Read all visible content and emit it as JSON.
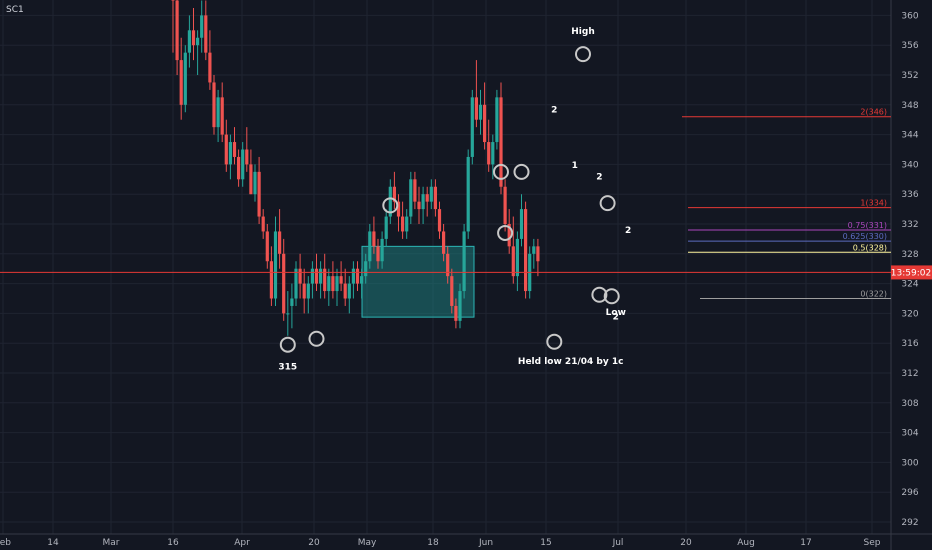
{
  "symbol": "SC1",
  "current_price_label": "13:59:02",
  "colors": {
    "background": "#131722",
    "grid": "#1f2431",
    "axis_text": "#b2b5be",
    "up_candle": "#26a69a",
    "down_candle": "#ef5350",
    "price_line": "#e53935",
    "box_fill": "#1e7a7a",
    "circle": "#c8c8c8",
    "text": "#ffffff"
  },
  "chart_data": {
    "type": "candlestick",
    "y_ticks": [
      "292",
      "296",
      "300",
      "304",
      "308",
      "312",
      "316",
      "320",
      "324",
      "328",
      "332",
      "336",
      "340",
      "344",
      "348",
      "352",
      "356",
      "360"
    ],
    "x_ticks": [
      "Feb",
      "14",
      "Mar",
      "16",
      "Apr",
      "20",
      "May",
      "18",
      "Jun",
      "15",
      "Jul",
      "20",
      "Aug",
      "17",
      "Sep"
    ],
    "ylim": [
      290,
      363
    ],
    "current_price": 325.5,
    "range_box": {
      "top": 329,
      "bottom": 319.5,
      "from": "Apr 27",
      "to": "May 29"
    },
    "fib_levels": [
      {
        "label": "2(346)",
        "value": 346.4,
        "color": "#e53935"
      },
      {
        "label": "1(334)",
        "value": 334.2,
        "color": "#e53935"
      },
      {
        "label": "0.75(331)",
        "value": 331.2,
        "color": "#ab47bc"
      },
      {
        "label": "0.625(330)",
        "value": 329.7,
        "color": "#5c6bc0"
      },
      {
        "label": "0.5(328)",
        "value": 328.2,
        "color": "#fff59d"
      },
      {
        "label": "0(322)",
        "value": 322.0,
        "color": "#9e9e9e"
      }
    ],
    "annotations": [
      {
        "text": "High",
        "date_index": 100,
        "price": 357.5
      },
      {
        "text": "315",
        "date_index": 28,
        "price": 312.5
      },
      {
        "text": "Held low 21/04 by 1c",
        "date_index": 97,
        "price": 313.2
      },
      {
        "text": "Low",
        "date_index": 108,
        "price": 319.8
      },
      {
        "text": "2",
        "date_index": 93,
        "price": 347.0
      },
      {
        "text": "1",
        "date_index": 98,
        "price": 339.5
      },
      {
        "text": "2",
        "date_index": 104,
        "price": 338.0
      },
      {
        "text": "2",
        "date_index": 111,
        "price": 330.8
      },
      {
        "text": "2",
        "date_index": 108,
        "price": 319.2
      }
    ],
    "circles": [
      {
        "date_index": 100,
        "price": 354.8
      },
      {
        "date_index": 80,
        "price": 339.0
      },
      {
        "date_index": 85,
        "price": 339.0
      },
      {
        "date_index": 53,
        "price": 334.5
      },
      {
        "date_index": 81,
        "price": 330.8
      },
      {
        "date_index": 28,
        "price": 315.8
      },
      {
        "date_index": 35,
        "price": 316.6
      },
      {
        "date_index": 93,
        "price": 316.2
      },
      {
        "date_index": 106,
        "price": 334.8
      },
      {
        "date_index": 104,
        "price": 322.5
      },
      {
        "date_index": 107,
        "price": 322.3
      }
    ],
    "candles": [
      [
        365,
        366,
        355,
        362
      ],
      [
        362,
        364,
        352,
        354
      ],
      [
        354,
        357,
        346,
        348
      ],
      [
        348,
        356,
        347,
        355
      ],
      [
        355,
        360,
        353,
        358
      ],
      [
        358,
        361,
        354,
        356
      ],
      [
        356,
        358,
        352,
        357
      ],
      [
        357,
        362,
        355,
        360
      ],
      [
        360,
        362,
        354,
        355
      ],
      [
        355,
        358,
        350,
        351
      ],
      [
        351,
        352,
        344,
        345
      ],
      [
        345,
        350,
        343,
        349
      ],
      [
        349,
        351,
        343,
        344
      ],
      [
        344,
        346,
        339,
        340
      ],
      [
        340,
        344,
        338,
        343
      ],
      [
        343,
        345,
        340,
        341
      ],
      [
        341,
        342,
        337,
        338
      ],
      [
        338,
        343,
        337,
        342
      ],
      [
        342,
        345,
        339,
        340
      ],
      [
        340,
        342,
        336,
        336
      ],
      [
        336,
        340,
        335,
        339
      ],
      [
        339,
        341,
        332,
        333
      ],
      [
        333,
        334,
        330,
        331
      ],
      [
        331,
        332,
        326,
        327
      ],
      [
        327,
        329,
        321,
        322
      ],
      [
        322,
        333,
        321,
        331
      ],
      [
        331,
        334,
        326,
        328
      ],
      [
        328,
        330,
        319,
        320
      ],
      [
        320,
        323,
        317,
        320
      ],
      [
        321,
        324,
        318,
        322
      ],
      [
        322,
        327,
        321,
        326
      ],
      [
        326,
        328,
        322,
        324
      ],
      [
        324,
        326,
        320,
        322
      ],
      [
        322,
        325,
        320,
        324
      ],
      [
        324,
        327,
        322,
        326
      ],
      [
        326,
        328,
        323,
        324
      ],
      [
        324,
        327,
        322,
        326
      ],
      [
        326,
        328,
        322,
        323
      ],
      [
        323,
        326,
        321,
        325
      ],
      [
        325,
        327,
        322,
        323
      ],
      [
        323,
        326,
        321,
        325
      ],
      [
        325,
        327,
        323,
        324
      ],
      [
        324,
        326,
        321,
        322
      ],
      [
        322,
        325,
        320,
        324
      ],
      [
        324,
        327,
        322,
        326
      ],
      [
        326,
        327,
        323,
        324
      ],
      [
        324,
        326,
        322,
        325
      ],
      [
        325,
        328,
        324,
        327
      ],
      [
        327,
        332,
        326,
        331
      ],
      [
        331,
        333,
        328,
        329
      ],
      [
        329,
        330,
        326,
        327
      ],
      [
        327,
        331,
        326,
        330
      ],
      [
        330,
        334,
        329,
        333
      ],
      [
        333,
        338,
        332,
        337
      ],
      [
        337,
        339,
        334,
        335
      ],
      [
        335,
        336,
        331,
        333
      ],
      [
        333,
        335,
        330,
        331
      ],
      [
        331,
        334,
        330,
        333
      ],
      [
        333,
        339,
        332,
        338
      ],
      [
        338,
        339,
        334,
        335
      ],
      [
        335,
        337,
        332,
        334
      ],
      [
        334,
        337,
        332,
        336
      ],
      [
        336,
        337,
        333,
        335
      ],
      [
        335,
        338,
        334,
        337
      ],
      [
        337,
        338,
        333,
        334
      ],
      [
        334,
        335,
        330,
        331
      ],
      [
        331,
        332,
        327,
        328
      ],
      [
        328,
        329,
        324,
        325
      ],
      [
        325,
        326,
        320,
        321
      ],
      [
        321,
        322,
        318,
        319
      ],
      [
        319,
        324,
        318,
        323
      ],
      [
        323,
        332,
        322,
        331
      ],
      [
        331,
        342,
        330,
        341
      ],
      [
        341,
        350,
        340,
        349
      ],
      [
        349,
        354,
        345,
        346
      ],
      [
        346,
        350,
        344,
        348
      ],
      [
        348,
        351,
        342,
        343
      ],
      [
        343,
        346,
        339,
        340
      ],
      [
        340,
        344,
        338,
        343
      ],
      [
        343,
        350,
        342,
        349
      ],
      [
        349,
        351,
        336,
        337
      ],
      [
        337,
        338,
        331,
        332
      ],
      [
        332,
        334,
        328,
        329
      ],
      [
        329,
        333,
        324,
        325
      ],
      [
        325,
        331,
        323,
        330
      ],
      [
        330,
        336,
        329,
        334
      ],
      [
        334,
        335,
        322,
        323
      ],
      [
        323,
        329,
        322,
        328
      ],
      [
        328,
        330,
        326,
        329
      ],
      [
        329,
        330,
        325,
        327
      ]
    ]
  }
}
